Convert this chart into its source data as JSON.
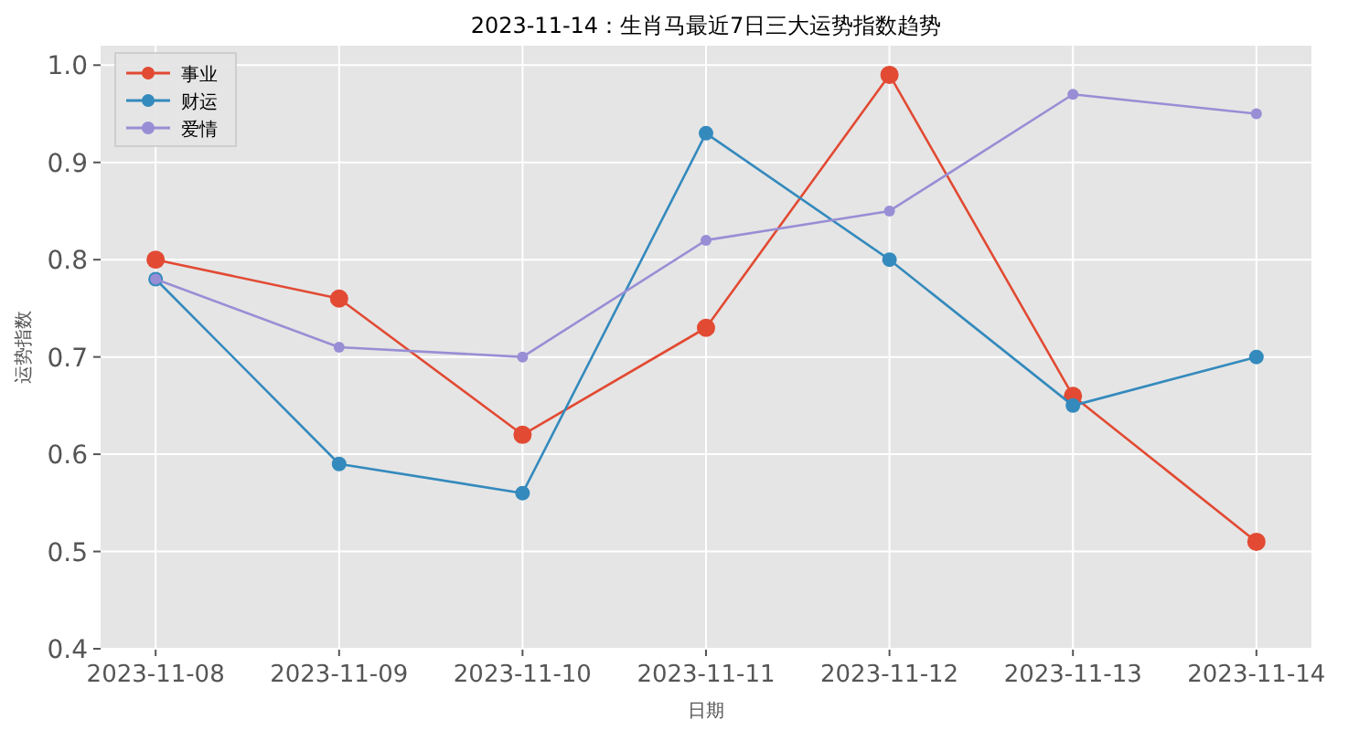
{
  "chart_data": {
    "type": "line",
    "title": "2023-11-14：生肖马最近7日三大运势指数趋势",
    "xlabel": "日期",
    "ylabel": "运势指数",
    "categories": [
      "2023-11-08",
      "2023-11-09",
      "2023-11-10",
      "2023-11-11",
      "2023-11-12",
      "2023-11-13",
      "2023-11-14"
    ],
    "series": [
      {
        "name": "事业",
        "color": "#e24a33",
        "values": [
          0.8,
          0.76,
          0.62,
          0.73,
          0.99,
          0.66,
          0.51
        ]
      },
      {
        "name": "财运",
        "color": "#348abd",
        "values": [
          0.78,
          0.59,
          0.56,
          0.93,
          0.8,
          0.65,
          0.7
        ]
      },
      {
        "name": "爱情",
        "color": "#988ed5",
        "values": [
          0.78,
          0.71,
          0.7,
          0.82,
          0.85,
          0.97,
          0.95
        ]
      }
    ],
    "ylim": [
      0.4,
      1.02
    ],
    "yticks": [
      {
        "value": 0.4,
        "label": "0.4"
      },
      {
        "value": 0.5,
        "label": "0.5"
      },
      {
        "value": 0.6,
        "label": "0.6"
      },
      {
        "value": 0.7,
        "label": "0.7"
      },
      {
        "value": 0.8,
        "label": "0.8"
      },
      {
        "value": 0.9,
        "label": "0.9"
      },
      {
        "value": 1.0,
        "label": "1.0"
      }
    ],
    "grid": true,
    "legend": "top left",
    "marker": "circle",
    "line_style": "solid"
  }
}
